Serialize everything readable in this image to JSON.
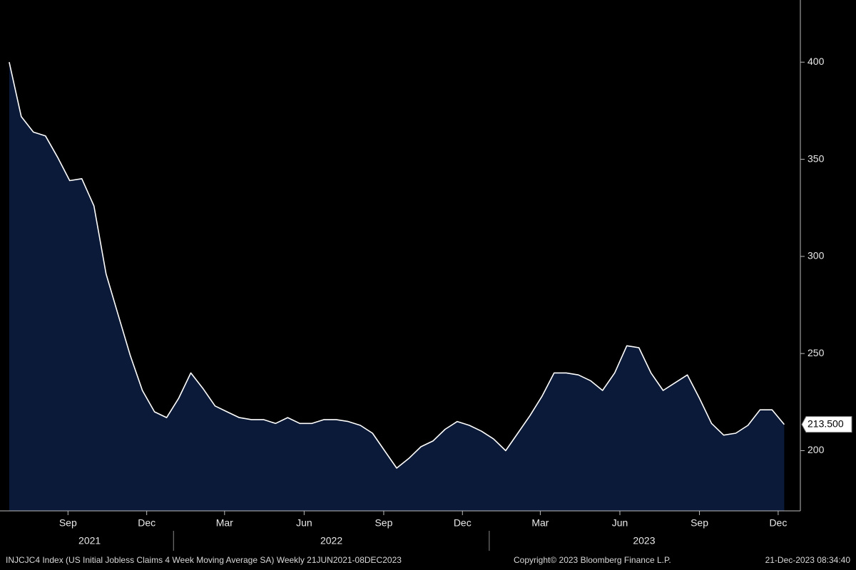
{
  "chart_data": {
    "type": "area",
    "x": [
      "2021-06-25",
      "2021-07-09",
      "2021-07-23",
      "2021-08-06",
      "2021-08-20",
      "2021-09-03",
      "2021-09-17",
      "2021-10-01",
      "2021-10-15",
      "2021-10-29",
      "2021-11-12",
      "2021-11-26",
      "2021-12-10",
      "2021-12-24",
      "2022-01-07",
      "2022-01-21",
      "2022-02-04",
      "2022-02-18",
      "2022-03-04",
      "2022-03-18",
      "2022-04-01",
      "2022-04-15",
      "2022-04-29",
      "2022-05-13",
      "2022-05-27",
      "2022-06-10",
      "2022-06-24",
      "2022-07-08",
      "2022-07-22",
      "2022-08-05",
      "2022-08-19",
      "2022-09-02",
      "2022-09-16",
      "2022-09-30",
      "2022-10-14",
      "2022-10-28",
      "2022-11-11",
      "2022-11-25",
      "2022-12-09",
      "2022-12-23",
      "2023-01-06",
      "2023-01-20",
      "2023-02-03",
      "2023-02-17",
      "2023-03-03",
      "2023-03-17",
      "2023-03-31",
      "2023-04-14",
      "2023-04-28",
      "2023-05-12",
      "2023-05-26",
      "2023-06-09",
      "2023-06-23",
      "2023-07-07",
      "2023-07-21",
      "2023-08-04",
      "2023-08-18",
      "2023-09-01",
      "2023-09-15",
      "2023-09-29",
      "2023-10-13",
      "2023-10-27",
      "2023-11-10",
      "2023-11-24",
      "2023-12-08"
    ],
    "values": [
      400,
      372,
      364,
      362,
      351,
      339,
      340,
      326,
      291,
      270,
      249,
      231,
      220,
      217,
      227,
      240,
      232,
      223,
      220,
      217,
      216,
      216,
      214,
      217,
      214,
      214,
      216,
      216,
      215,
      213,
      209,
      200,
      191,
      196,
      202,
      205,
      211,
      215,
      213,
      210,
      206,
      200,
      209,
      218,
      228,
      240,
      240,
      239,
      236,
      231,
      240,
      254,
      253,
      240,
      231,
      235,
      239,
      227,
      214,
      208,
      209,
      213,
      221,
      221,
      213.5
    ],
    "fill_color": "#0b1a38",
    "line_color": "#ffffff",
    "last_value_label": "213.500",
    "xlim": [
      "2021-06-21",
      "2023-12-25"
    ],
    "xticks": [
      {
        "value": "2021-09-01",
        "label": "Sep"
      },
      {
        "value": "2021-12-01",
        "label": "Dec"
      },
      {
        "value": "2022-03-01",
        "label": "Mar"
      },
      {
        "value": "2022-06-01",
        "label": "Jun"
      },
      {
        "value": "2022-09-01",
        "label": "Sep"
      },
      {
        "value": "2022-12-01",
        "label": "Dec"
      },
      {
        "value": "2023-03-01",
        "label": "Mar"
      },
      {
        "value": "2023-06-01",
        "label": "Jun"
      },
      {
        "value": "2023-09-01",
        "label": "Sep"
      },
      {
        "value": "2023-12-01",
        "label": "Dec"
      }
    ],
    "years": [
      "2021",
      "2022",
      "2023"
    ],
    "ylim": [
      169,
      432
    ],
    "yticks": [
      200,
      250,
      300,
      350,
      400
    ],
    "footer": {
      "description": "INJCJC4 Index (US Initial Jobless Claims 4 Week Moving Average SA)  Weekly 21JUN2021-08DEC2023",
      "copyright": "Copyright© 2023 Bloomberg Finance L.P.",
      "timestamp": "21-Dec-2023 08:34:40"
    }
  }
}
